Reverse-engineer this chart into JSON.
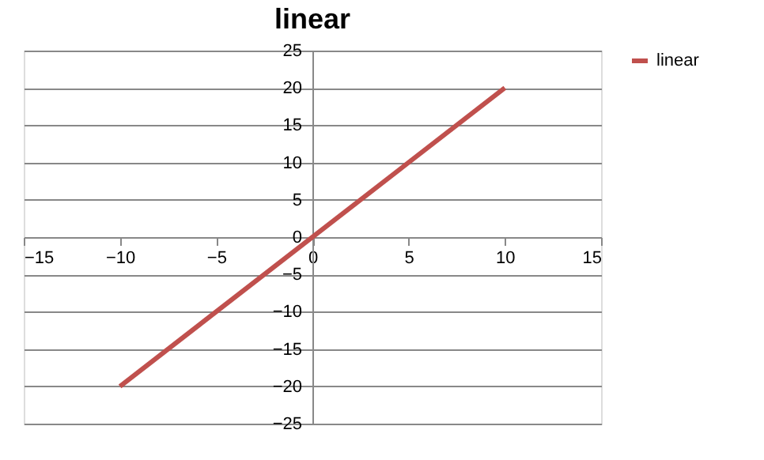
{
  "chart_data": {
    "type": "line",
    "title": "linear",
    "x": [
      -10,
      10
    ],
    "series": [
      {
        "name": "linear",
        "color": "#c0504d",
        "values": [
          -20,
          20
        ]
      }
    ],
    "xlim": [
      -15,
      15
    ],
    "xticks": [
      -15,
      -10,
      -5,
      0,
      5,
      10,
      15
    ],
    "ylim": [
      -25,
      25
    ],
    "yticks": [
      -25,
      -20,
      -15,
      -10,
      -5,
      0,
      5,
      10,
      15,
      20,
      25
    ],
    "grid": "y",
    "legend": "right",
    "marker": "none",
    "line_style": "solid"
  }
}
